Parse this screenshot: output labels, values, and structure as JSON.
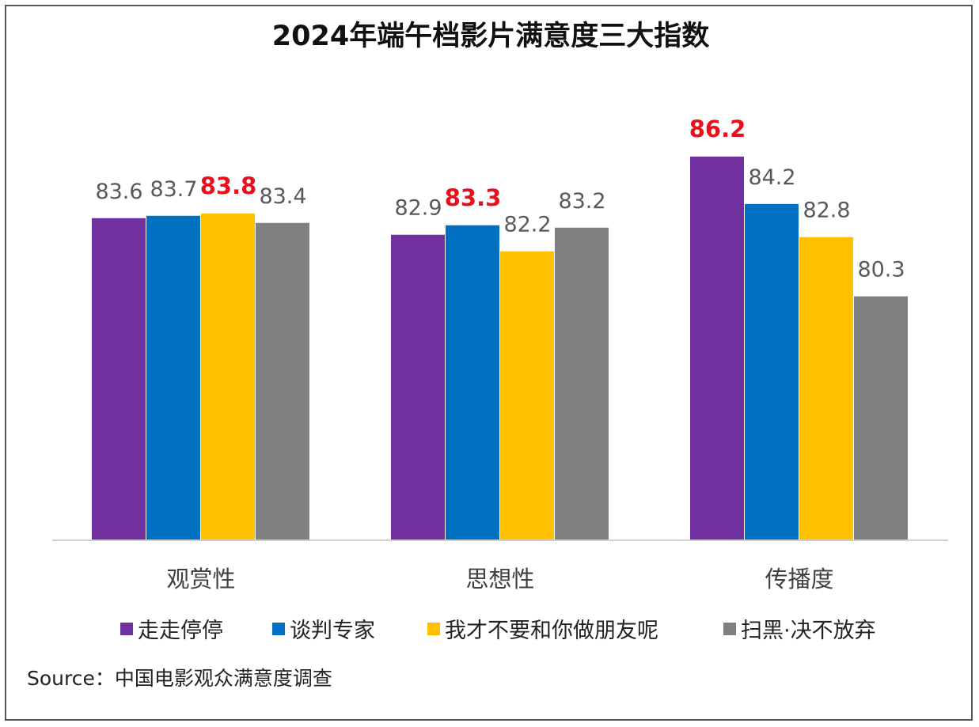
{
  "chart_data": {
    "type": "bar",
    "title": "2024年端午档影片满意度三大指数",
    "xlabel": "",
    "ylabel": "",
    "categories": [
      "观赏性",
      "思想性",
      "传播度"
    ],
    "series": [
      {
        "name": "走走停停",
        "color": "#7030a0",
        "values": [
          83.6,
          82.9,
          86.2
        ]
      },
      {
        "name": "谈判专家",
        "color": "#0070c0",
        "values": [
          83.7,
          83.3,
          84.2
        ]
      },
      {
        "name": "我才不要和你做朋友呢",
        "color": "#ffc000",
        "values": [
          83.8,
          82.2,
          82.8
        ]
      },
      {
        "name": "扫黑·决不放弃",
        "color": "#808080",
        "values": [
          83.4,
          83.2,
          80.3
        ]
      }
    ],
    "highlighted": [
      [
        0,
        2
      ],
      [
        1,
        1
      ],
      [
        2,
        0
      ]
    ],
    "highlight_color": "#e8101c",
    "ylim": [
      70,
      87.3
    ],
    "grid": false,
    "legend_position": "bottom"
  },
  "source": "Source：中国电影观众满意度调查"
}
